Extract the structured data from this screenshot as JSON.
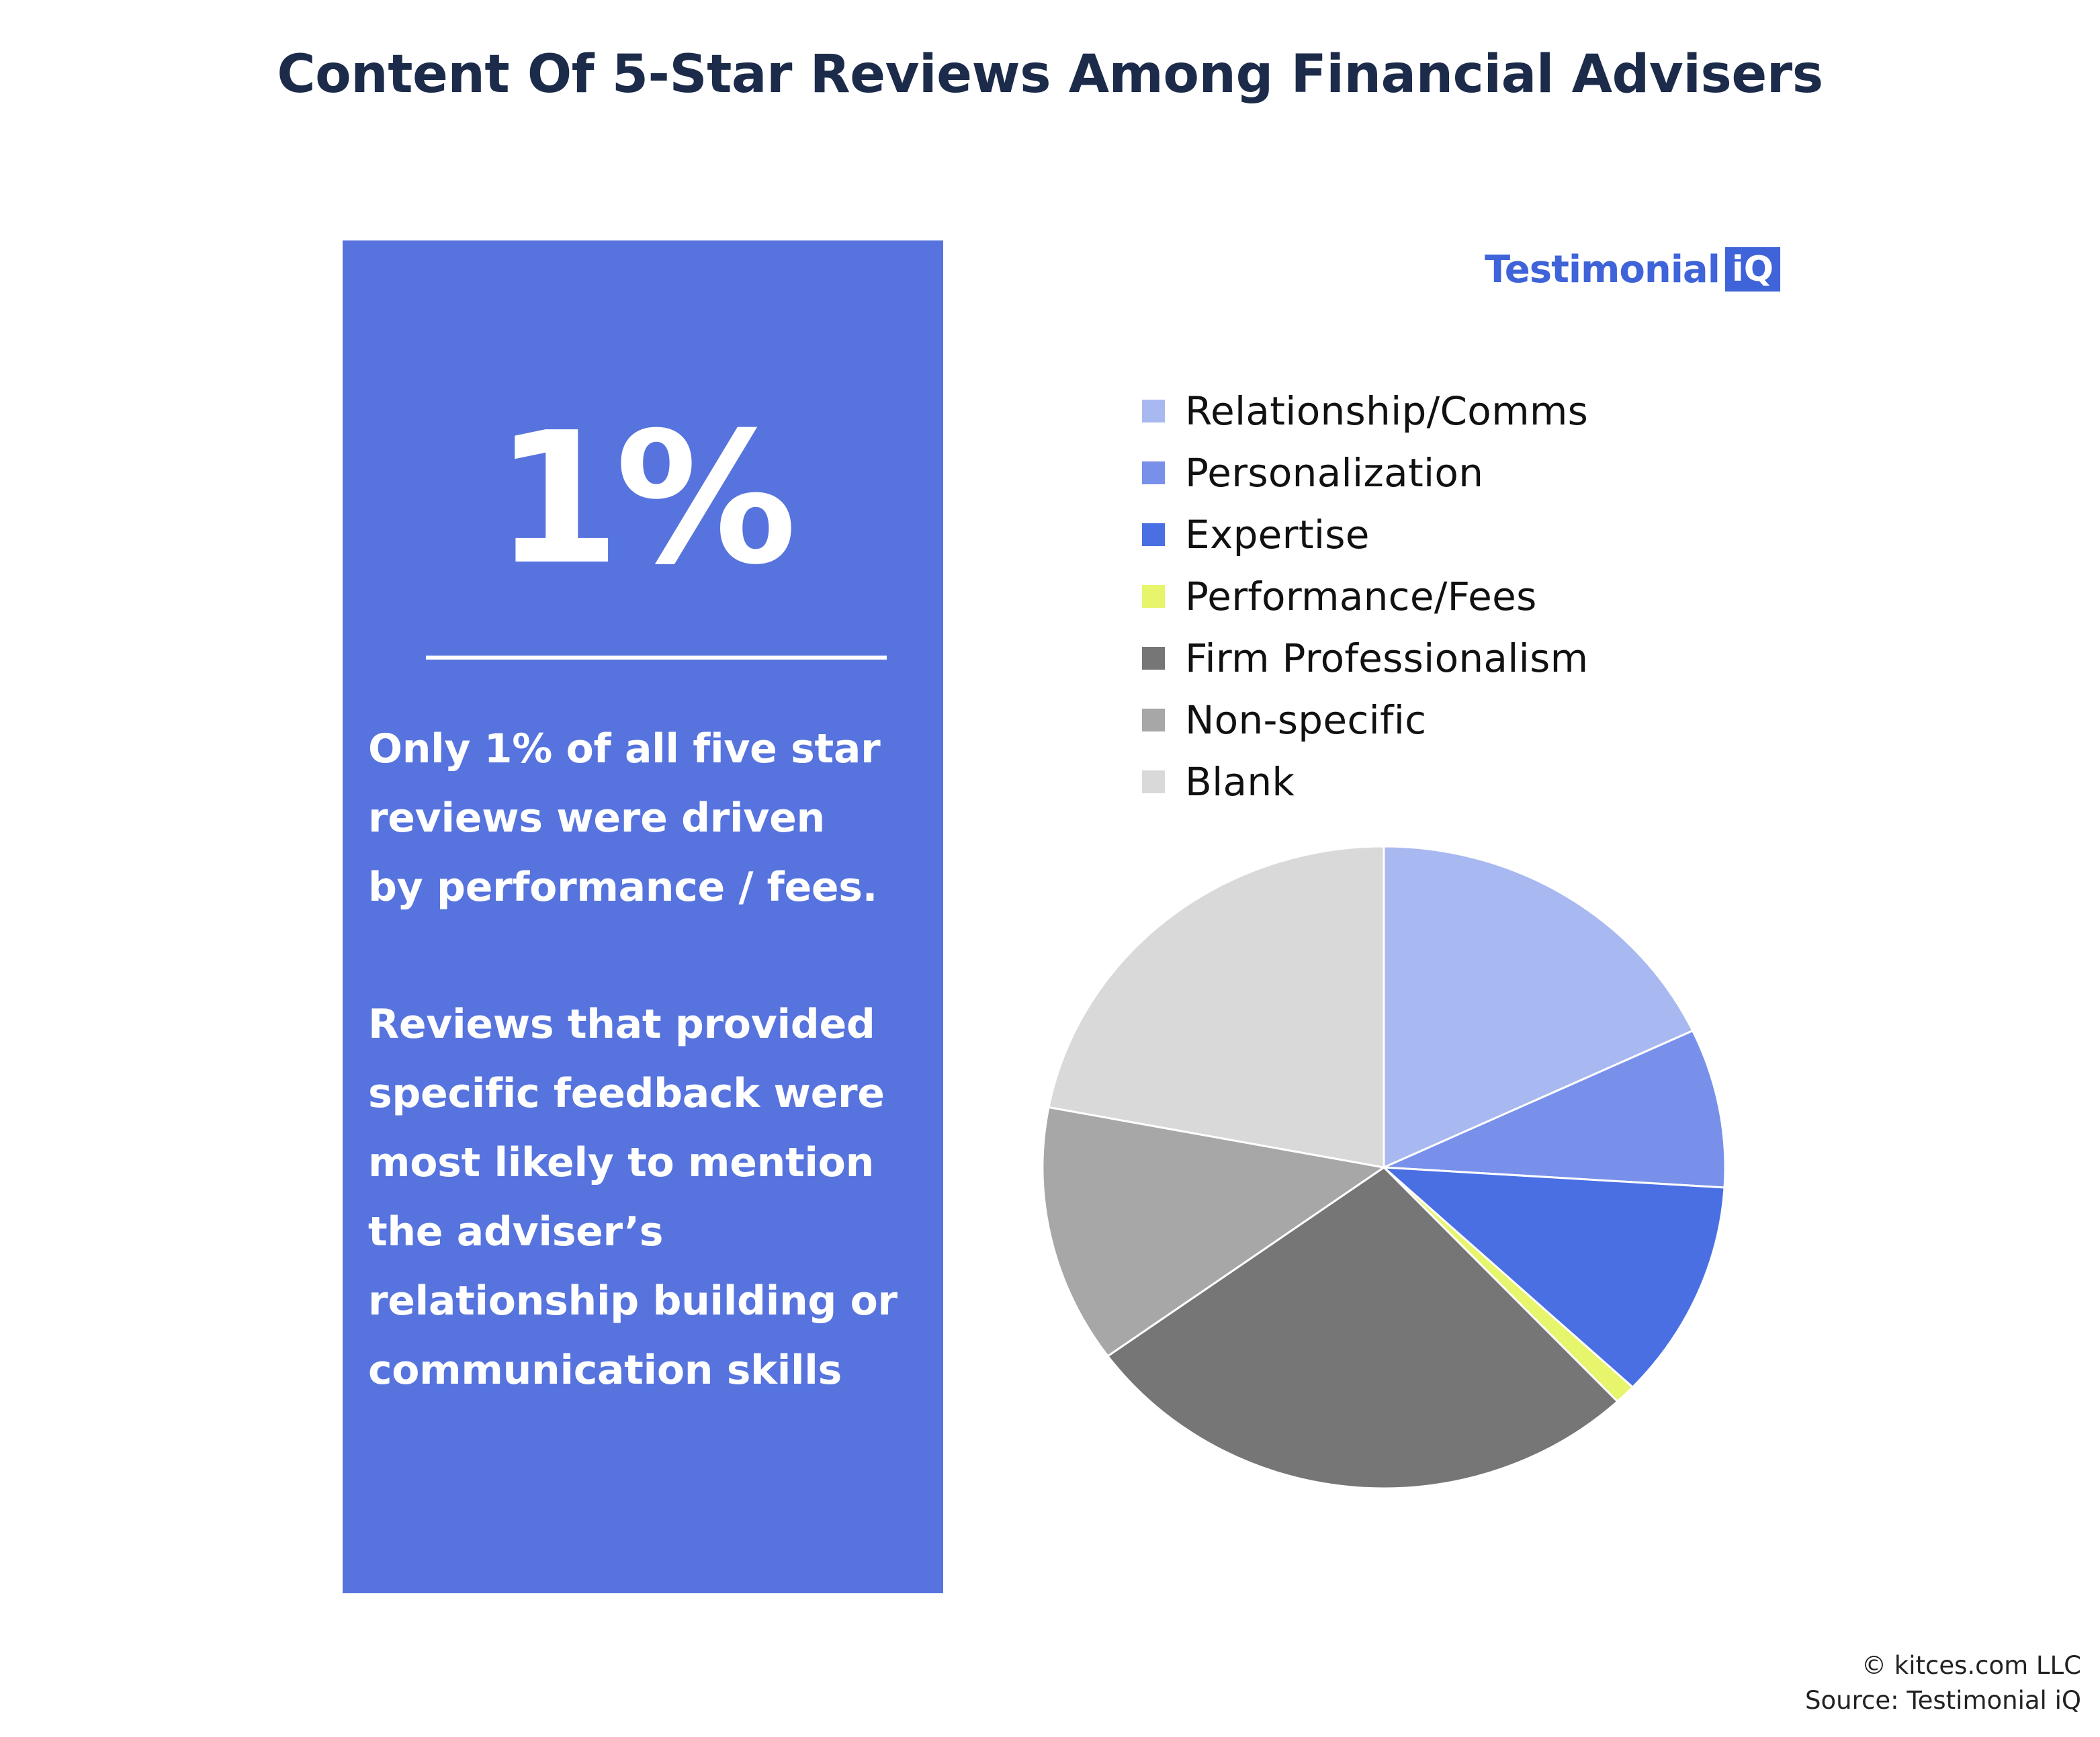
{
  "title": "Content Of 5-Star Reviews Among Financial Advisers",
  "panel": {
    "stat": "1%",
    "paragraph1": "Only 1% of all five star\nreviews were driven\nby performance / fees.",
    "paragraph2": "Reviews that provided\nspecific feedback were\nmost likely to mention\nthe adviser’s\nrelationship building or\ncommunication skills",
    "background_color": "#5673de"
  },
  "brand": {
    "word": "Testimonial",
    "box": "iQ",
    "color": "#3f63d8"
  },
  "chart_data": {
    "type": "pie",
    "title": "",
    "slices": [
      {
        "label": "Relationship/Comms",
        "value": 18,
        "color": "#a8b8f0"
      },
      {
        "label": "Personalization",
        "value": 8,
        "color": "#7890ea"
      },
      {
        "label": "Expertise",
        "value": 11,
        "color": "#4a6fe3"
      },
      {
        "label": "Performance/Fees",
        "value": 1,
        "color": "#e6f56b"
      },
      {
        "label": "Firm Professionalism",
        "value": 27,
        "color": "#767676"
      },
      {
        "label": "Non-specific",
        "value": 13,
        "color": "#a7a7a7"
      },
      {
        "label": "Blank",
        "value": 22,
        "color": "#d9d9d9"
      }
    ],
    "start": "12 o'clock",
    "direction": "clockwise",
    "legend_position": "top"
  },
  "credit": {
    "line1": "© kitces.com LLC",
    "line2": "Source: Testimonial iQ"
  }
}
